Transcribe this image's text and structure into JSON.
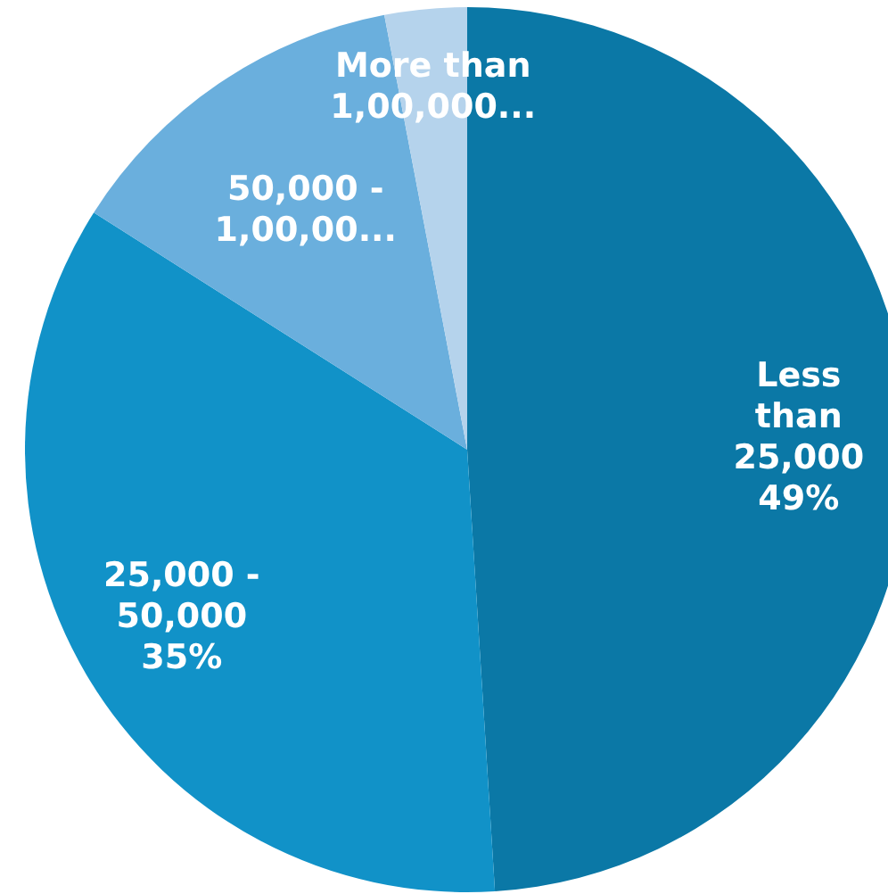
{
  "chart_data": {
    "type": "pie",
    "categories": [
      "Less than 25,000",
      "25,000 - 50,000",
      "50,000 - 1,00,00...",
      "More than 1,00,000..."
    ],
    "values": [
      49,
      35,
      13,
      3
    ],
    "colors": [
      "#0b78a6",
      "#1192c8",
      "#6aafdd",
      "#b5d3ec"
    ],
    "value_labels": [
      "49%",
      "35%",
      null,
      null
    ]
  }
}
